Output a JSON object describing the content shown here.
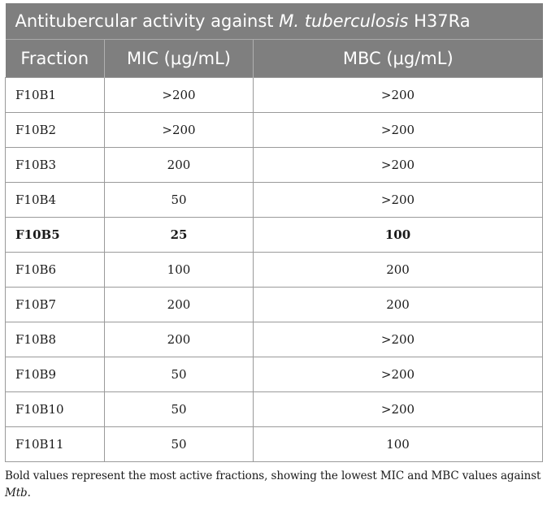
{
  "table": {
    "title_prefix": "Antitubercular activity against ",
    "title_italic": "M. tuberculosis",
    "title_suffix": " H37Ra",
    "headers": [
      "Fraction",
      "MIC (μg/mL)",
      "MBC (μg/mL)"
    ],
    "rows": [
      {
        "fraction": "F10B1",
        "mic": ">200",
        "mbc": ">200",
        "bold": false
      },
      {
        "fraction": "F10B2",
        "mic": ">200",
        "mbc": ">200",
        "bold": false
      },
      {
        "fraction": "F10B3",
        "mic": "200",
        "mbc": ">200",
        "bold": false
      },
      {
        "fraction": "F10B4",
        "mic": "50",
        "mbc": ">200",
        "bold": false
      },
      {
        "fraction": "F10B5",
        "mic": "25",
        "mbc": "100",
        "bold": true
      },
      {
        "fraction": "F10B6",
        "mic": "100",
        "mbc": "200",
        "bold": false
      },
      {
        "fraction": "F10B7",
        "mic": "200",
        "mbc": "200",
        "bold": false
      },
      {
        "fraction": "F10B8",
        "mic": "200",
        "mbc": ">200",
        "bold": false
      },
      {
        "fraction": "F10B9",
        "mic": "50",
        "mbc": ">200",
        "bold": false
      },
      {
        "fraction": "F10B10",
        "mic": "50",
        "mbc": ">200",
        "bold": false
      },
      {
        "fraction": "F10B11",
        "mic": "50",
        "mbc": "100",
        "bold": false
      }
    ]
  },
  "footnote": {
    "text": "Bold values represent the most active fractions, showing the lowest MIC and MBC values against ",
    "italic": "Mtb",
    "end": "."
  },
  "colors": {
    "header_bg": "#7f7f7f",
    "header_text": "#ffffff",
    "border": "#9a9a9a"
  }
}
